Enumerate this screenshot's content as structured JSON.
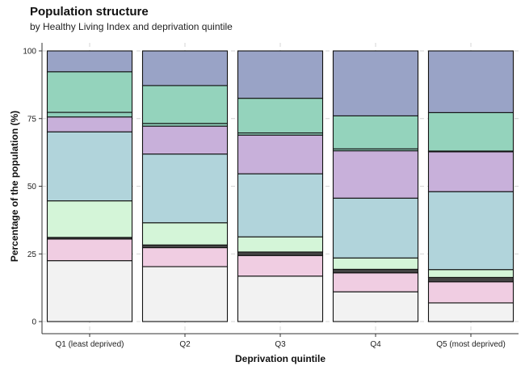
{
  "chart_data": {
    "type": "bar",
    "stacked": true,
    "title": "Population structure",
    "subtitle": "by Healthy Living Index and deprivation quintile",
    "xlabel": "Deprivation quintile",
    "ylabel": "Percentage of the population (%)",
    "ylim": [
      0,
      100
    ],
    "yticks": [
      "0",
      "25",
      "50",
      "75",
      "100"
    ],
    "grid": true,
    "legend": "none",
    "categories": [
      "Q1 (least deprived)",
      "Q2",
      "Q3",
      "Q4",
      "Q5 (most deprived)"
    ],
    "series": [
      {
        "color": "#f2f2f2",
        "values": [
          22.5,
          20.3,
          16.8,
          11.0,
          6.9
        ]
      },
      {
        "color": "#f0cde2",
        "values": [
          8.0,
          7.0,
          7.6,
          7.0,
          7.8
        ]
      },
      {
        "color": "#444444",
        "values": [
          0.6,
          1.0,
          1.3,
          1.3,
          1.6
        ]
      },
      {
        "color": "#d4f5d8",
        "values": [
          13.5,
          8.2,
          5.6,
          4.2,
          2.9
        ]
      },
      {
        "color": "#b1d4db",
        "values": [
          25.5,
          25.4,
          23.3,
          22.1,
          28.8
        ]
      },
      {
        "color": "#c8b0da",
        "values": [
          5.5,
          10.3,
          14.3,
          17.5,
          14.7
        ]
      },
      {
        "color": "#8fcfba",
        "values": [
          1.7,
          1.0,
          0.8,
          0.7,
          0.3
        ]
      },
      {
        "color": "#94d3bc",
        "values": [
          15.0,
          14.0,
          12.8,
          12.2,
          14.2
        ]
      },
      {
        "color": "#99a3c6",
        "values": [
          7.7,
          12.8,
          17.5,
          24.0,
          22.8
        ]
      }
    ]
  }
}
